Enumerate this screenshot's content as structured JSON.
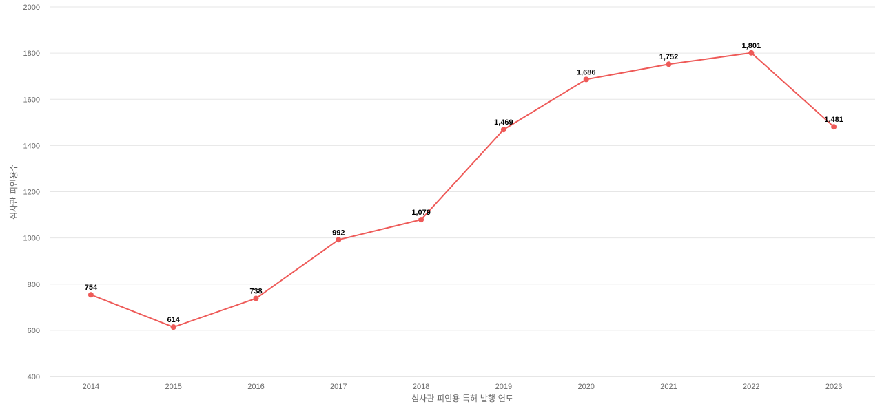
{
  "chart_data": {
    "type": "line",
    "xlabel": "심사관 피인용 특허 발행 연도",
    "ylabel": "심사관 피인용수",
    "ylim": [
      400,
      2000
    ],
    "yticks": [
      400,
      600,
      800,
      1000,
      1200,
      1400,
      1600,
      1800,
      2000
    ],
    "categories": [
      "2014",
      "2015",
      "2016",
      "2017",
      "2018",
      "2019",
      "2020",
      "2021",
      "2022",
      "2023"
    ],
    "series": [
      {
        "values": [
          754,
          614,
          738,
          992,
          1079,
          1469,
          1686,
          1752,
          1801,
          1481
        ],
        "data_labels": [
          "754",
          "614",
          "738",
          "992",
          "1,079",
          "1,469",
          "1,686",
          "1,752",
          "1,801",
          "1,481"
        ],
        "color": "#ee5a58"
      }
    ],
    "grid": true,
    "legend": "none"
  }
}
